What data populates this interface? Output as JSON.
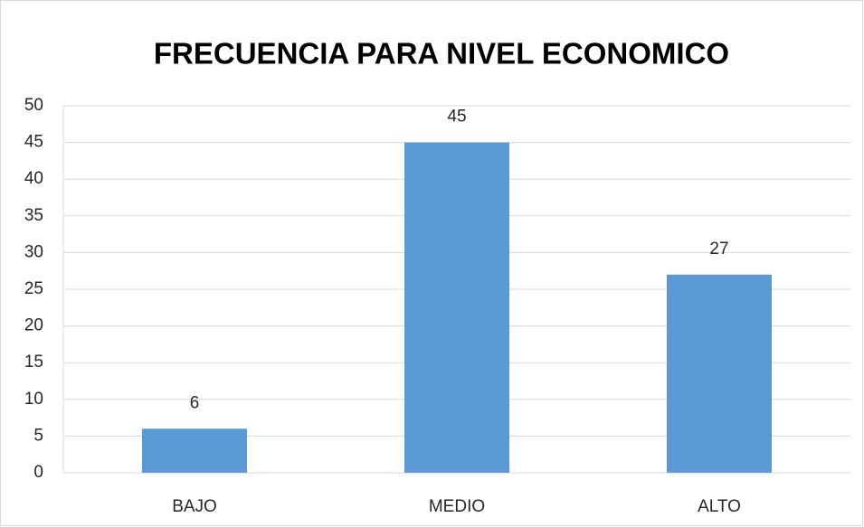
{
  "chart_data": {
    "type": "bar",
    "title": "FRECUENCIA PARA NIVEL ECONOMICO",
    "categories": [
      "BAJO",
      "MEDIO",
      "ALTO"
    ],
    "values": [
      6,
      45,
      27
    ],
    "color": "#5b9bd5",
    "ylim": [
      0,
      50
    ],
    "yticks": [
      0,
      5,
      10,
      15,
      20,
      25,
      30,
      35,
      40,
      45,
      50
    ],
    "grid": true
  }
}
